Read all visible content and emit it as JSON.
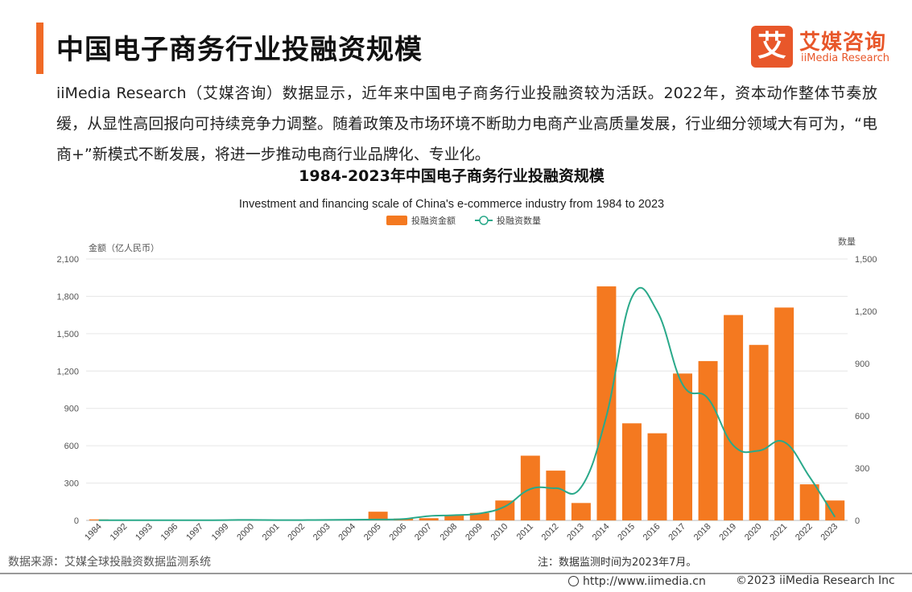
{
  "header": {
    "title": "中国电子商务行业投融资规模",
    "logo_mark": "艾",
    "logo_cn": "艾媒咨询",
    "logo_en": "iiMedia Research"
  },
  "intro": "iiMedia Research（艾媒咨询）数据显示，近年来中国电子商务行业投融资较为活跃。2022年，资本动作整体节奏放缓，从显性高回报向可持续竞争力调整。随着政策及市场环境不断助力电商产业高质量发展，行业细分领域大有可为，“电商+”新模式不断发展，将进一步推动电商行业品牌化、专业化。",
  "chart_data": {
    "type": "bar",
    "title": "1984-2023年中国电子商务行业投融资规模",
    "subtitle": "Investment and financing scale of China's e-commerce industry from 1984 to 2023",
    "categories": [
      "1984",
      "1992",
      "1993",
      "1996",
      "1997",
      "1999",
      "2000",
      "2001",
      "2002",
      "2003",
      "2004",
      "2005",
      "2006",
      "2007",
      "2008",
      "2009",
      "2010",
      "2011",
      "2012",
      "2013",
      "2014",
      "2015",
      "2016",
      "2017",
      "2018",
      "2019",
      "2020",
      "2021",
      "2022",
      "2023"
    ],
    "series": [
      {
        "name": "投融资金额",
        "type": "bar",
        "axis": "left",
        "color": "#f47920",
        "values": [
          8,
          3,
          2,
          3,
          2,
          2,
          3,
          2,
          3,
          4,
          5,
          70,
          15,
          18,
          40,
          60,
          160,
          520,
          400,
          140,
          1880,
          780,
          700,
          1180,
          1280,
          1650,
          1410,
          1710,
          290,
          160
        ]
      },
      {
        "name": "投融资数量",
        "type": "line",
        "axis": "right",
        "color": "#2aa98a",
        "values": [
          1,
          1,
          1,
          1,
          1,
          2,
          3,
          2,
          2,
          3,
          4,
          5,
          8,
          25,
          30,
          40,
          80,
          180,
          185,
          190,
          600,
          1280,
          1200,
          780,
          700,
          430,
          400,
          450,
          250,
          20
        ]
      }
    ],
    "ylabel_left": "金额（亿人民币）",
    "ylabel_right": "数量",
    "ylim_left": [
      0,
      2100
    ],
    "ylim_right": [
      0,
      1500
    ],
    "yticks_left": [
      "0",
      "300",
      "600",
      "900",
      "1,200",
      "1,500",
      "1,800",
      "2,100"
    ],
    "yticks_right": [
      "0",
      "300",
      "600",
      "900",
      "1,200",
      "1,500"
    ],
    "legend_position": "top-center",
    "grid": true
  },
  "footer": {
    "source": "数据来源：艾媒全球投融资数据监测系统",
    "note": "注：数据监测时间为2023年7月。",
    "url": "http://www.iimedia.cn",
    "copyright": "©2023  iiMedia Research  Inc"
  }
}
